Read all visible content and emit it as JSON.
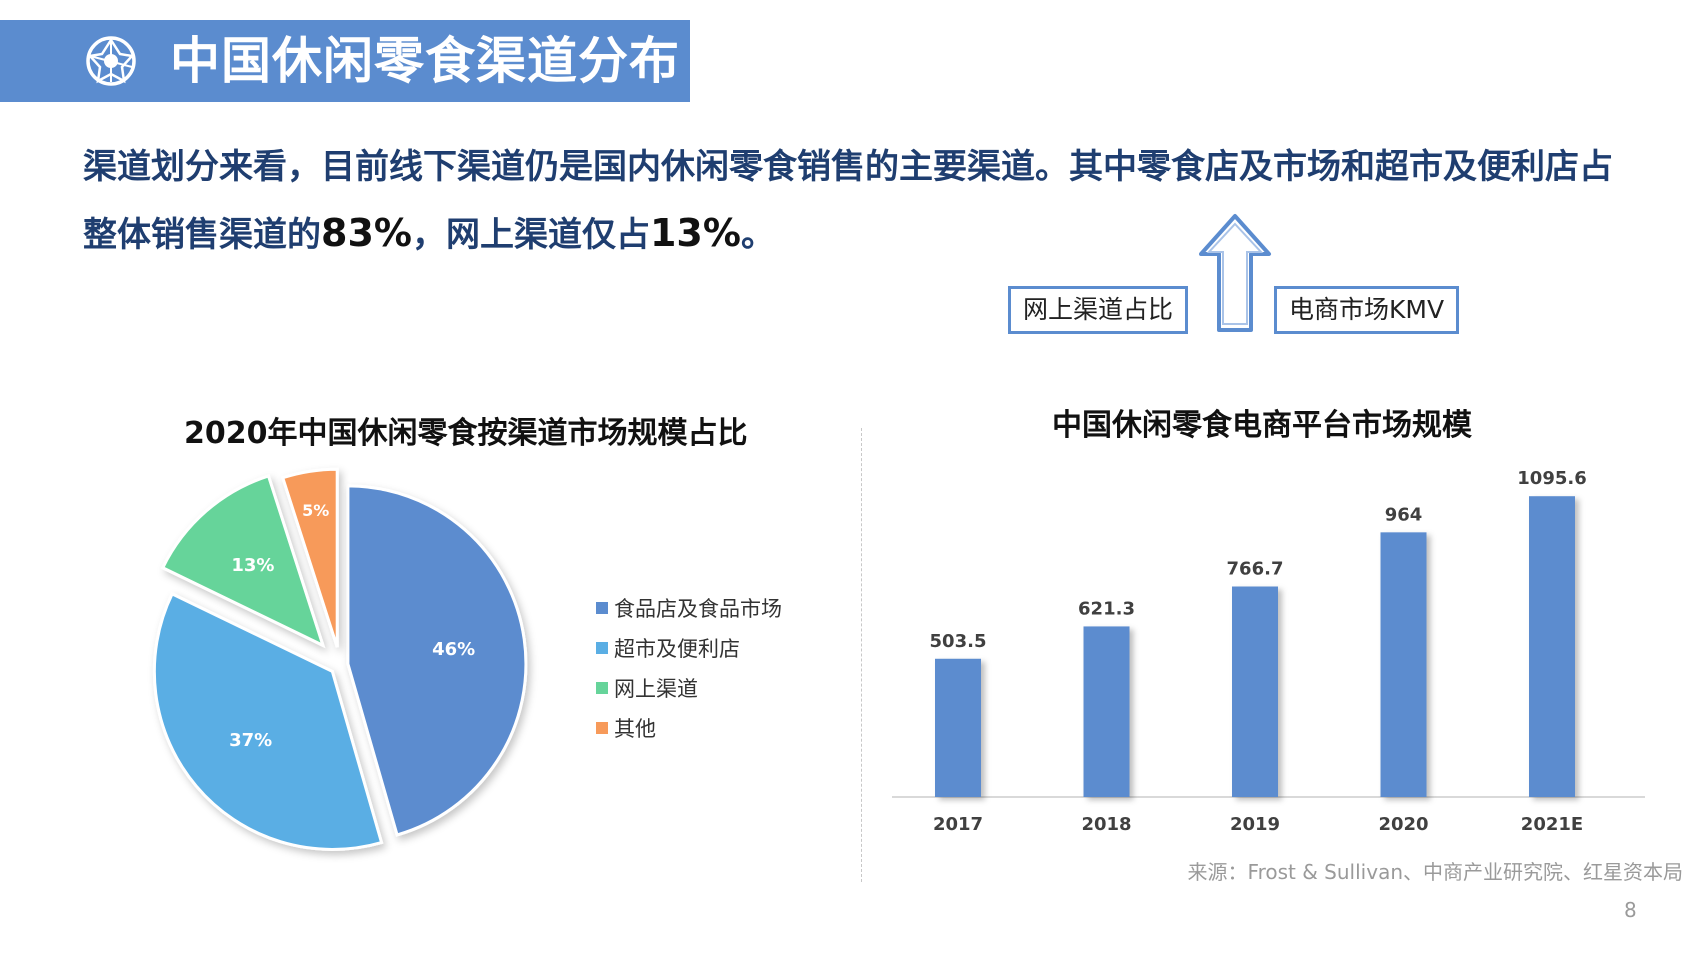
{
  "header": {
    "title": "中国休闲零食渠道分布"
  },
  "summary": {
    "part1": "渠道划分来看，目前线下渠道仍是国内休闲零食销售的主要渠道。其中零食店及市场和超市及便利店占整体销售渠道的",
    "offline_share": "83%",
    "part2": "，网上渠道仅占",
    "online_share": "13%",
    "part3": "。"
  },
  "trend": {
    "left_label": "网上渠道占比",
    "right_label": "电商市场KMV"
  },
  "colors": {
    "title_bar": "#5b8ccf",
    "summary_text": "#1f3e70",
    "bar": "#5b8ccf",
    "pie": [
      "#5b8ccf",
      "#5aaee4",
      "#66d49a",
      "#f79a5a"
    ]
  },
  "chart_data": [
    {
      "type": "pie",
      "title": "2020年中国休闲零食按渠道市场规模占比",
      "labels": [
        "食品店及食品市场",
        "超市及便利店",
        "网上渠道",
        "其他"
      ],
      "values": [
        46,
        37,
        13,
        5
      ],
      "value_labels": [
        "46%",
        "37%",
        "13%",
        "5%"
      ],
      "legend_position": "right",
      "exploded": true
    },
    {
      "type": "bar",
      "title": "中国休闲零食电商平台市场规模",
      "categories": [
        "2017",
        "2018",
        "2019",
        "2020",
        "2021E"
      ],
      "values": [
        503.5,
        621.3,
        766.7,
        964,
        1095.6
      ],
      "value_labels": [
        "503.5",
        "621.3",
        "766.7",
        "964",
        "1095.6"
      ],
      "xlabel": "",
      "ylabel": "",
      "ylim": [
        0,
        1100
      ],
      "grid": false
    }
  ],
  "footer": {
    "source": "来源：Frost & Sullivan、中商产业研究院、红星资本局",
    "page": "8"
  }
}
